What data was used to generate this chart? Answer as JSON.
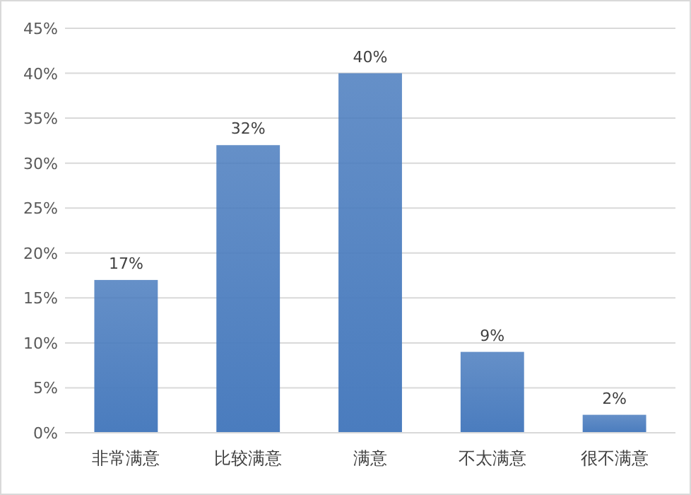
{
  "chart_data": {
    "type": "bar",
    "categories": [
      "非常满意",
      "比较满意",
      "满意",
      "不太满意",
      "很不满意"
    ],
    "values": [
      17,
      32,
      40,
      9,
      2
    ],
    "value_labels": [
      "17%",
      "32%",
      "40%",
      "9%",
      "2%"
    ],
    "color": "#4a7cbe",
    "ylim": [
      0,
      45
    ],
    "yticks": [
      {
        "value": 0,
        "label": "0%"
      },
      {
        "value": 5,
        "label": "5%"
      },
      {
        "value": 10,
        "label": "10%"
      },
      {
        "value": 15,
        "label": "15%"
      },
      {
        "value": 20,
        "label": "20%"
      },
      {
        "value": 25,
        "label": "25%"
      },
      {
        "value": 30,
        "label": "30%"
      },
      {
        "value": 35,
        "label": "35%"
      },
      {
        "value": 40,
        "label": "40%"
      },
      {
        "value": 45,
        "label": "45%"
      }
    ],
    "grid": "y"
  }
}
